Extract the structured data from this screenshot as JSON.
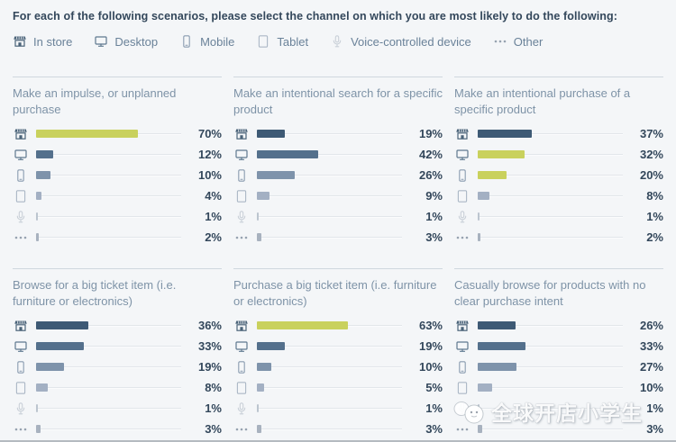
{
  "header": {
    "title": "For each of the following scenarios, please select the channel on which you are most likely to do the following:"
  },
  "channels": [
    {
      "id": "in_store",
      "label": "In store",
      "icon": "storefront-icon",
      "color": "#3e5a75",
      "icon_color": "#4a6379"
    },
    {
      "id": "desktop",
      "label": "Desktop",
      "icon": "desktop-icon",
      "color": "#54708c",
      "icon_color": "#5e788f"
    },
    {
      "id": "mobile",
      "label": "Mobile",
      "icon": "mobile-icon",
      "color": "#7e93ab",
      "icon_color": "#8a9cb0"
    },
    {
      "id": "tablet",
      "label": "Tablet",
      "icon": "tablet-icon",
      "color": "#a3b0c3",
      "icon_color": "#abb7c5"
    },
    {
      "id": "voice",
      "label": "Voice-controlled device",
      "icon": "microphone-icon",
      "color": "#bcc5cf",
      "icon_color": "#c9d0d8"
    },
    {
      "id": "other",
      "label": "Other",
      "icon": "ellipsis-icon",
      "color": "#a8b2bf",
      "icon_color": "#96a2b0"
    }
  ],
  "colors": {
    "highlight": "#c9d15d",
    "track": "#e2e6ea",
    "value_text": "#33475b",
    "panel_title": "#7e93a7",
    "header_text": "#33475b",
    "legend_text": "#6a8299",
    "background": "#f4f6f8"
  },
  "chart_data": {
    "type": "bar",
    "orientation": "horizontal",
    "layout": "small-multiples-2x3",
    "unit": "%",
    "xlim": [
      0,
      100
    ],
    "categories": [
      "In store",
      "Desktop",
      "Mobile",
      "Tablet",
      "Voice-controlled device",
      "Other"
    ],
    "panels": [
      {
        "title": "Make an impulse, or unplanned purchase",
        "values": [
          70,
          12,
          10,
          4,
          1,
          2
        ],
        "highlighted": [
          "In store"
        ]
      },
      {
        "title": "Make an intentional search for a specific product",
        "values": [
          19,
          42,
          26,
          9,
          1,
          3
        ],
        "highlighted": []
      },
      {
        "title": "Make an intentional purchase of a specific product",
        "values": [
          37,
          32,
          20,
          8,
          1,
          2
        ],
        "highlighted": [
          "Desktop",
          "Mobile"
        ]
      },
      {
        "title": "Browse for a big ticket item (i.e. furniture or electronics)",
        "values": [
          36,
          33,
          19,
          8,
          1,
          3
        ],
        "highlighted": []
      },
      {
        "title": "Purchase a big ticket item (i.e. furniture or electronics)",
        "values": [
          63,
          19,
          10,
          5,
          1,
          3
        ],
        "highlighted": [
          "In store"
        ]
      },
      {
        "title": "Casually browse for products with no clear purchase intent",
        "values": [
          26,
          33,
          27,
          10,
          1,
          3
        ],
        "highlighted": []
      }
    ]
  },
  "watermark": {
    "text": "全球开店小学生"
  }
}
